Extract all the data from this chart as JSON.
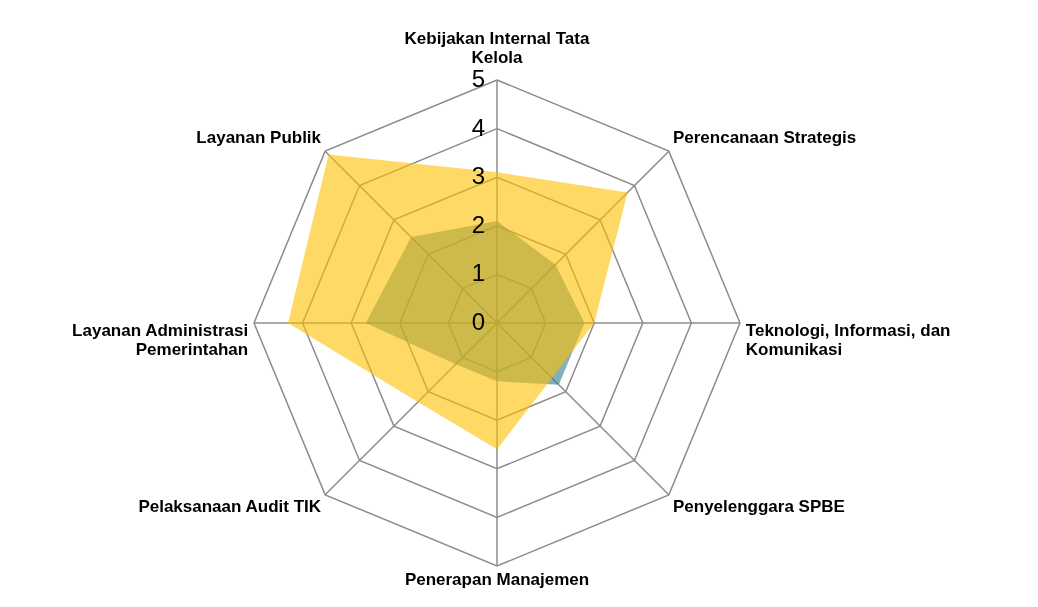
{
  "chart_data": {
    "type": "radar",
    "categories": [
      "Kebijakan Internal Tata Kelola",
      "Perencanaan Strategis",
      "Teknologi, Informasi, dan Komunikasi",
      "Penyelenggara SPBE",
      "Penerapan Manajemen",
      "Pelaksanaan Audit TIK",
      "Layanan Administrasi Pemerintahan",
      "Layanan Publik"
    ],
    "series": [
      {
        "color": "#ffc000",
        "values": [
          3.1,
          3.8,
          2.0,
          1.6,
          2.6,
          2.3,
          4.3,
          4.9
        ]
      },
      {
        "color": "#2e7d8c",
        "values": [
          2.1,
          1.7,
          1.8,
          1.8,
          1.2,
          1.2,
          2.7,
          2.5
        ]
      }
    ],
    "ylim": [
      0,
      5
    ],
    "yticks": [
      0,
      1,
      2,
      3,
      4,
      5
    ],
    "grid": true
  }
}
